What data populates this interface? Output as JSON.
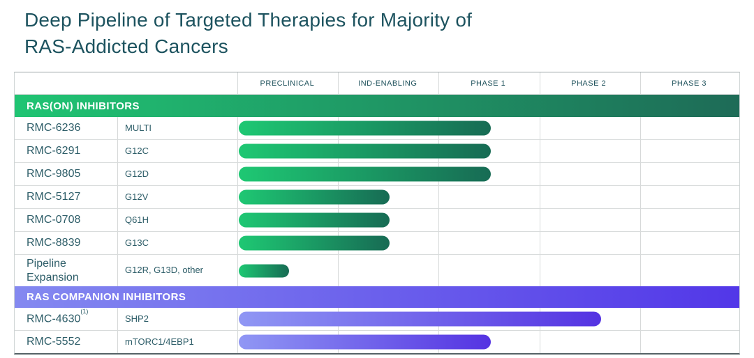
{
  "title": {
    "line1": "Deep Pipeline of Targeted Therapies for Majority of",
    "line2": "RAS-Addicted Cancers"
  },
  "table": {
    "stage_columns": [
      "PRECLINICAL",
      "IND-ENABLING",
      "PHASE 1",
      "PHASE 2",
      "PHASE 3"
    ],
    "sections": [
      {
        "label": "RAS(ON) INHIBITORS",
        "header_gradient": [
          "#20C473",
          "#1E6B57"
        ],
        "bar_gradient": [
          "#1EC873",
          "#176B54"
        ],
        "rows": [
          {
            "name": "RMC-6236",
            "target": "MULTI",
            "end_stage": 2.5
          },
          {
            "name": "RMC-6291",
            "target": "G12C",
            "end_stage": 2.5
          },
          {
            "name": "RMC-9805",
            "target": "G12D",
            "end_stage": 2.5
          },
          {
            "name": "RMC-5127",
            "target": "G12V",
            "end_stage": 1.5
          },
          {
            "name": "RMC-0708",
            "target": "Q61H",
            "end_stage": 1.5
          },
          {
            "name": "RMC-8839",
            "target": "G13C",
            "end_stage": 1.5
          },
          {
            "name": "Pipeline Expansion",
            "target": "G12R, G13D, other",
            "end_stage": 0.5
          }
        ]
      },
      {
        "label": "RAS COMPANION INHIBITORS",
        "header_gradient": [
          "#8489F0",
          "#5237E8"
        ],
        "bar_gradient": [
          "#9097F4",
          "#5433E2"
        ],
        "rows": [
          {
            "name": "RMC-4630",
            "name_superscript": "(1)",
            "target": "SHP2",
            "end_stage": 3.6
          },
          {
            "name": "RMC-5552",
            "target": "mTORC1/4EBP1",
            "end_stage": 2.5
          }
        ]
      }
    ]
  },
  "chart_data": {
    "type": "bar",
    "orientation": "horizontal",
    "title": "Deep Pipeline of Targeted Therapies for Majority of RAS-Addicted Cancers",
    "x_axis_stages": [
      "PRECLINICAL",
      "IND-ENABLING",
      "PHASE 1",
      "PHASE 2",
      "PHASE 3"
    ],
    "xlim_stages": [
      0,
      5
    ],
    "grid": true,
    "series": [
      {
        "name": "RAS(ON) INHIBITORS",
        "bar_color_start": "#1EC873",
        "bar_color_end": "#176B54",
        "programs": [
          {
            "program": "RMC-6236",
            "target": "MULTI",
            "progress_stage_units": 2.5,
            "reached": "mid Phase 1"
          },
          {
            "program": "RMC-6291",
            "target": "G12C",
            "progress_stage_units": 2.5,
            "reached": "mid Phase 1"
          },
          {
            "program": "RMC-9805",
            "target": "G12D",
            "progress_stage_units": 2.5,
            "reached": "mid Phase 1"
          },
          {
            "program": "RMC-5127",
            "target": "G12V",
            "progress_stage_units": 1.5,
            "reached": "mid IND-Enabling"
          },
          {
            "program": "RMC-0708",
            "target": "Q61H",
            "progress_stage_units": 1.5,
            "reached": "mid IND-Enabling"
          },
          {
            "program": "RMC-8839",
            "target": "G13C",
            "progress_stage_units": 1.5,
            "reached": "mid IND-Enabling"
          },
          {
            "program": "Pipeline Expansion",
            "target": "G12R, G13D, other",
            "progress_stage_units": 0.5,
            "reached": "mid Preclinical"
          }
        ]
      },
      {
        "name": "RAS COMPANION INHIBITORS",
        "bar_color_start": "#9097F4",
        "bar_color_end": "#5433E2",
        "programs": [
          {
            "program": "RMC-4630 (1)",
            "target": "SHP2",
            "progress_stage_units": 3.6,
            "reached": "Phase 2"
          },
          {
            "program": "RMC-5552",
            "target": "mTORC1/4EBP1",
            "progress_stage_units": 2.5,
            "reached": "mid Phase 1"
          }
        ]
      }
    ]
  }
}
